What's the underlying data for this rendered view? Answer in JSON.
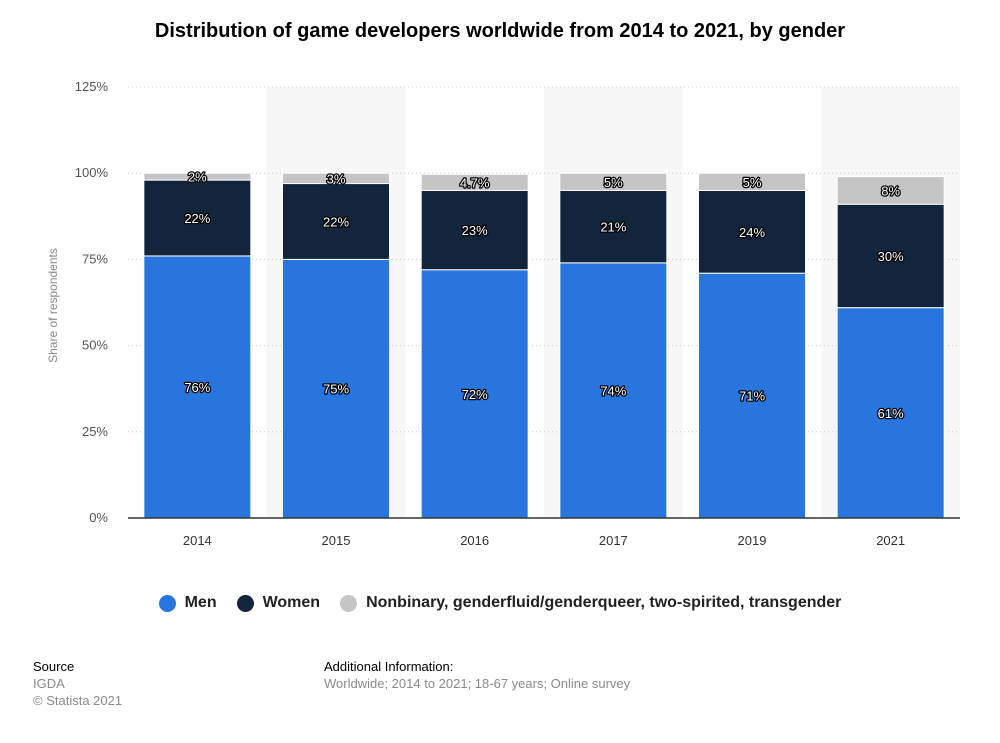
{
  "title": "Distribution of game developers worldwide from 2014 to 2021, by gender",
  "legend": [
    {
      "label": "Men",
      "color": "#2876dd"
    },
    {
      "label": "Women",
      "color": "#13253c"
    },
    {
      "label": "Nonbinary, genderfluid/genderqueer, two-spirited, transgender",
      "color": "#c5c5c5"
    }
  ],
  "footer": {
    "source_heading": "Source",
    "source_lines": [
      "IGDA",
      "© Statista 2021"
    ],
    "info_heading": "Additional Information:",
    "info_text": "Worldwide; 2014 to 2021; 18-67 years; Online survey"
  },
  "chart_data": {
    "type": "bar",
    "stacked": true,
    "title": "Distribution of game developers worldwide from 2014 to 2021, by gender",
    "categories": [
      "2014",
      "2015",
      "2016",
      "2017",
      "2019",
      "2021"
    ],
    "series": [
      {
        "name": "Men",
        "color": "#2876dd",
        "values": [
          76,
          75,
          72,
          74,
          71,
          61
        ],
        "labels": [
          "76%",
          "75%",
          "72%",
          "74%",
          "71%",
          "61%"
        ]
      },
      {
        "name": "Women",
        "color": "#13253c",
        "values": [
          22,
          22,
          23,
          21,
          24,
          30
        ],
        "labels": [
          "22%",
          "22%",
          "23%",
          "21%",
          "24%",
          "30%"
        ]
      },
      {
        "name": "Nonbinary, genderfluid/genderqueer, two-spirited, transgender",
        "color": "#c5c5c5",
        "values": [
          2,
          3,
          4.7,
          5,
          5,
          8
        ],
        "labels": [
          "2%",
          "3%",
          "4.7%",
          "5%",
          "5%",
          "8%"
        ]
      }
    ],
    "ylabel": "Share of respondents",
    "xlabel": "",
    "ylim": [
      0,
      125
    ],
    "yticks": [
      0,
      25,
      50,
      75,
      100,
      125
    ],
    "ytick_labels": [
      "0%",
      "25%",
      "50%",
      "75%",
      "100%",
      "125%"
    ],
    "grid": true,
    "legend_position": "bottom"
  }
}
